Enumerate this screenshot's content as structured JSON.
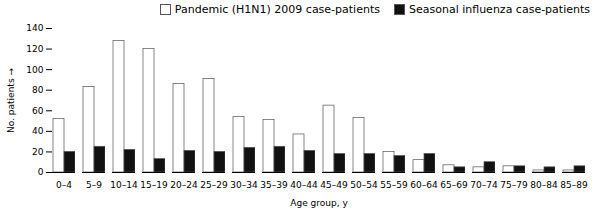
{
  "chart_data": {
    "type": "bar",
    "categories": [
      "0–4",
      "5–9",
      "10–14",
      "15–19",
      "20–24",
      "25–29",
      "30–34",
      "35–39",
      "40–44",
      "45–49",
      "50–54",
      "55–59",
      "60–64",
      "65–69",
      "70–74",
      "75–79",
      "80–84",
      "85–89"
    ],
    "series": [
      {
        "name": "Pandemic (H1N1) 2009 case-patients",
        "color": "#ffffff",
        "values": [
          52,
          83,
          128,
          120,
          86,
          91,
          54,
          51,
          37,
          65,
          53,
          20,
          12,
          7,
          5,
          6,
          2,
          2
        ]
      },
      {
        "name": "Seasonal influenza case-patients",
        "color": "#111111",
        "values": [
          20,
          25,
          22,
          13,
          21,
          20,
          24,
          25,
          21,
          18,
          18,
          16,
          18,
          5,
          10,
          6,
          5,
          6
        ]
      }
    ],
    "xlabel": "Age group, y",
    "ylabel": "No. patients",
    "ylim": [
      0,
      140
    ],
    "yticks": [
      0,
      20,
      40,
      60,
      80,
      100,
      120,
      140
    ],
    "grid": false,
    "legend": "upper right"
  }
}
